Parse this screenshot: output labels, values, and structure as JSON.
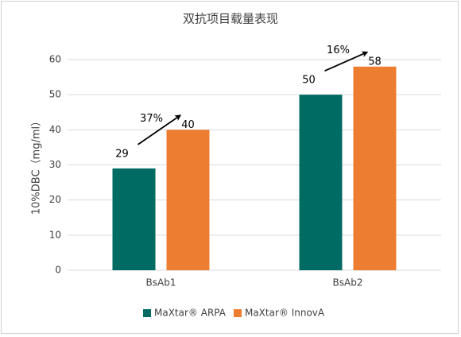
{
  "chart_data": {
    "type": "bar",
    "title": "双抗项目载量表现",
    "y_label": "10%DBC（mg/ml）",
    "categories": [
      "BsAb1",
      "BsAb2"
    ],
    "series": [
      {
        "name": "MaXtar® ARPA",
        "color": "#006b63",
        "values": [
          29,
          50
        ]
      },
      {
        "name": "MaXtar® InnovA",
        "color": "#ed7d31",
        "values": [
          40,
          58
        ]
      }
    ],
    "annotations": [
      "37%",
      "16%"
    ],
    "ylim": [
      0,
      60
    ],
    "yticks": [
      0,
      10,
      20,
      30,
      40,
      50,
      60
    ],
    "grid": true,
    "legend": "bottom"
  }
}
